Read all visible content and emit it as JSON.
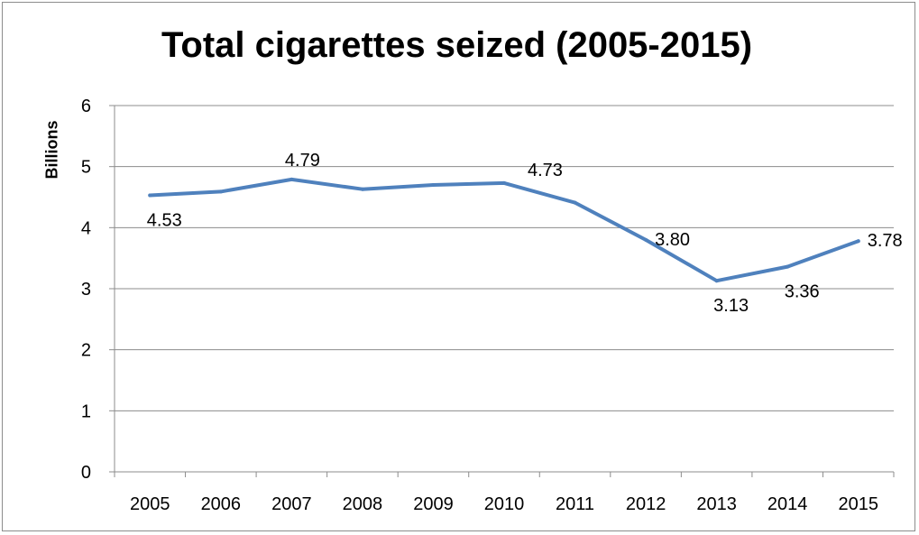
{
  "chart_data": {
    "type": "line",
    "title": "Total cigarettes seized (2005-2015)",
    "ylabel": "Billions",
    "xlabel": "",
    "ylim": [
      0,
      6
    ],
    "yticks": [
      "0",
      "1",
      "2",
      "3",
      "4",
      "5",
      "6"
    ],
    "grid": true,
    "legend": "none",
    "categories": [
      "2005",
      "2006",
      "2007",
      "2008",
      "2009",
      "2010",
      "2011",
      "2012",
      "2013",
      "2014",
      "2015"
    ],
    "series": [
      {
        "values": [
          4.53,
          4.59,
          4.79,
          4.63,
          4.7,
          4.73,
          4.41,
          3.8,
          3.13,
          3.36,
          3.78
        ],
        "color": "#4f81bd",
        "data_labels": [
          {
            "index": 0,
            "text": "4.53",
            "placement": "below"
          },
          {
            "index": 2,
            "text": "4.79",
            "placement": "above"
          },
          {
            "index": 5,
            "text": "4.73",
            "placement": "above-right"
          },
          {
            "index": 7,
            "text": "3.80",
            "placement": "right"
          },
          {
            "index": 8,
            "text": "3.13",
            "placement": "below"
          },
          {
            "index": 9,
            "text": "3.36",
            "placement": "below"
          },
          {
            "index": 10,
            "text": "3.78",
            "placement": "right"
          }
        ]
      }
    ]
  }
}
